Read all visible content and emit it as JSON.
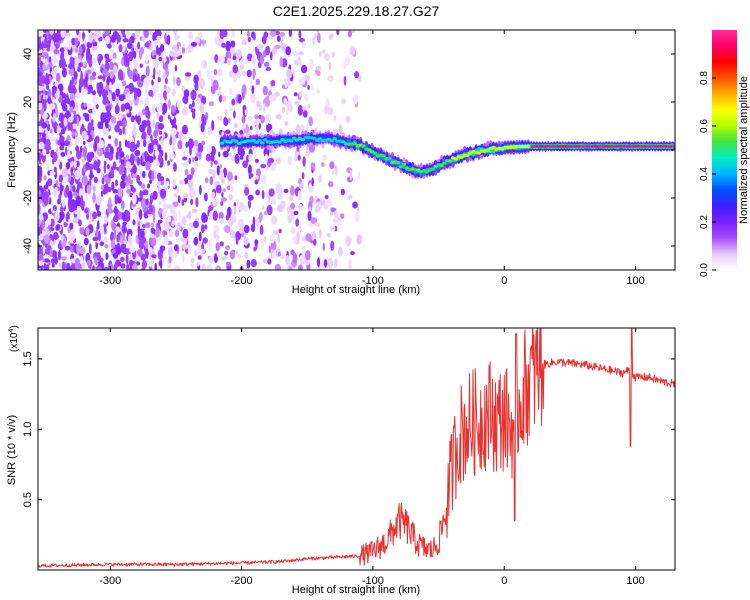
{
  "title": "C2E1.2025.229.18.27.G27",
  "chart_data": [
    {
      "type": "heatmap",
      "xlabel": "Height of straight line (km)",
      "ylabel": "Frequency (Hz)",
      "xlim": [
        -355,
        130
      ],
      "ylim": [
        -50,
        50
      ],
      "x_ticks": [
        -300,
        -200,
        -100,
        0,
        100
      ],
      "y_ticks": [
        -40,
        -20,
        0,
        20,
        40
      ],
      "colorbar": {
        "label": "Normalized spectral amplitude",
        "range": [
          0,
          1
        ],
        "ticks": [
          "0.0",
          "0.2",
          "0.4",
          "0.6",
          "0.8"
        ],
        "tick_values": [
          0,
          0.2,
          0.4,
          0.6,
          0.8
        ],
        "colors": [
          "#ffffff",
          "#e6c8ff",
          "#a64dff",
          "#7a1fff",
          "#3a20ff",
          "#0050ff",
          "#00b4ff",
          "#00f0c0",
          "#40e040",
          "#b0ff00",
          "#ffff00",
          "#ffb000",
          "#ff5000",
          "#ff0000",
          "#ff0066",
          "#ff2a9a"
        ]
      },
      "ridge": {
        "x": [
          -215,
          -190,
          -170,
          -150,
          -130,
          -110,
          -95,
          -80,
          -65,
          -55,
          -45,
          -30,
          -15,
          0,
          20,
          50,
          80,
          100,
          130
        ],
        "y": [
          3.5,
          3.5,
          4,
          4.5,
          4.5,
          2,
          -2,
          -6,
          -9,
          -8,
          -5,
          -2,
          0,
          1,
          1.5,
          1.5,
          1.5,
          1.5,
          1.5
        ]
      },
      "grid": false
    },
    {
      "type": "line",
      "xlabel": "Height of straight line (km)",
      "ylabel": "SNR (10 * v/v)",
      "y_multiplier": "(x10",
      "y_exponent": "4",
      "xlim": [
        -355,
        130
      ],
      "ylim": [
        0,
        1.72
      ],
      "x_ticks": [
        -300,
        -200,
        -100,
        0,
        100
      ],
      "y_ticks": [
        "0.5",
        "1.0",
        "1.5"
      ],
      "y_tick_values": [
        0.5,
        1.0,
        1.5
      ],
      "series": [
        {
          "color": "#e8312f",
          "x": [
            -355,
            -300,
            -250,
            -200,
            -170,
            -150,
            -130,
            -110,
            -100,
            -90,
            -80,
            -75,
            -70,
            -65,
            -60,
            -55,
            -50,
            -45,
            -40,
            -35,
            -30,
            -25,
            -20,
            -15,
            -10,
            -5,
            0,
            5,
            10,
            15,
            20,
            25,
            30,
            40,
            50,
            60,
            70,
            80,
            90,
            95,
            100,
            110,
            120,
            130
          ],
          "y": [
            0.03,
            0.04,
            0.04,
            0.05,
            0.06,
            0.08,
            0.09,
            0.1,
            0.13,
            0.2,
            0.35,
            0.32,
            0.24,
            0.18,
            0.15,
            0.14,
            0.2,
            0.4,
            0.7,
            0.95,
            1.0,
            1.05,
            1.05,
            1.1,
            1.12,
            1.05,
            1.1,
            1.0,
            1.15,
            1.28,
            1.36,
            1.42,
            1.46,
            1.48,
            1.47,
            1.46,
            1.44,
            1.42,
            1.4,
            1.42,
            1.37,
            1.37,
            1.34,
            1.32
          ]
        }
      ],
      "grid": false
    }
  ]
}
